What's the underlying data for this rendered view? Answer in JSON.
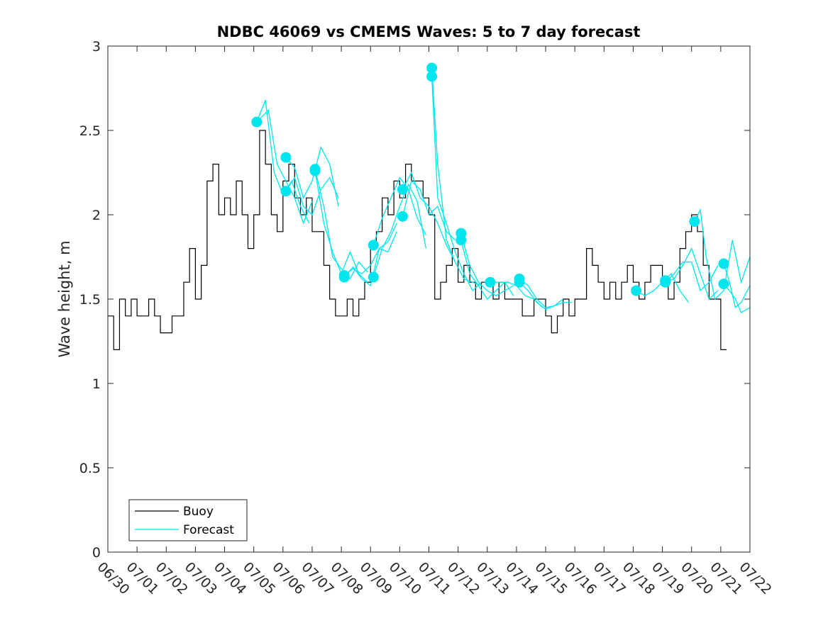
{
  "chart_data": {
    "type": "line",
    "title": "NDBC 46069 vs CMEMS Waves: 5 to 7 day forecast",
    "xlabel": "",
    "ylabel": "Wave height, m",
    "xlim": [
      "06/30",
      "07/22"
    ],
    "ylim": [
      0,
      3
    ],
    "xticks": [
      "06/30",
      "07/01",
      "07/02",
      "07/03",
      "07/04",
      "07/05",
      "07/06",
      "07/07",
      "07/08",
      "07/09",
      "07/10",
      "07/11",
      "07/12",
      "07/13",
      "07/14",
      "07/15",
      "07/16",
      "07/17",
      "07/18",
      "07/19",
      "07/20",
      "07/21",
      "07/22"
    ],
    "yticks": [
      "0",
      "0.5",
      "1",
      "1.5",
      "2",
      "2.5",
      "3"
    ],
    "grid": false,
    "legend": {
      "location": "bottom-left",
      "entries": [
        {
          "label": "Buoy",
          "color": "#000000"
        },
        {
          "label": "Forecast",
          "color": "#00e5ee"
        }
      ]
    },
    "colors": {
      "buoy": "#000000",
      "forecast": "#00e5ee"
    },
    "series": [
      {
        "name": "Buoy",
        "x_days": [
          0.0,
          0.2,
          0.4,
          0.6,
          0.8,
          1.0,
          1.2,
          1.4,
          1.6,
          1.8,
          2.0,
          2.2,
          2.4,
          2.6,
          2.8,
          3.0,
          3.2,
          3.4,
          3.6,
          3.8,
          4.0,
          4.2,
          4.4,
          4.6,
          4.8,
          5.0,
          5.2,
          5.4,
          5.6,
          5.8,
          6.0,
          6.2,
          6.4,
          6.6,
          6.8,
          7.0,
          7.2,
          7.4,
          7.6,
          7.8,
          8.0,
          8.2,
          8.4,
          8.6,
          8.8,
          9.0,
          9.2,
          9.4,
          9.6,
          9.8,
          10.0,
          10.2,
          10.4,
          10.6,
          10.8,
          11.0,
          11.2,
          11.4,
          11.6,
          11.8,
          12.0,
          12.2,
          12.4,
          12.6,
          12.8,
          13.0,
          13.2,
          13.4,
          13.6,
          13.8,
          14.0,
          14.2,
          14.4,
          14.6,
          14.8,
          15.0,
          15.2,
          15.4,
          15.6,
          15.8,
          16.0,
          16.2,
          16.4,
          16.6,
          16.8,
          17.0,
          17.2,
          17.4,
          17.6,
          17.8,
          18.0,
          18.2,
          18.4,
          18.6,
          18.8,
          19.0,
          19.2,
          19.4,
          19.6,
          19.8,
          20.0,
          20.2,
          20.4,
          20.6,
          20.8,
          21.0,
          21.2
        ],
        "values": [
          1.4,
          1.2,
          1.5,
          1.4,
          1.5,
          1.4,
          1.4,
          1.5,
          1.4,
          1.3,
          1.3,
          1.4,
          1.4,
          1.6,
          1.8,
          1.5,
          1.7,
          2.2,
          2.3,
          2.0,
          2.1,
          2.0,
          2.2,
          2.0,
          1.8,
          2.0,
          2.5,
          2.3,
          2.0,
          1.9,
          2.2,
          2.3,
          2.1,
          2.0,
          2.1,
          1.9,
          1.9,
          1.7,
          1.5,
          1.4,
          1.4,
          1.5,
          1.4,
          1.5,
          1.6,
          1.8,
          1.9,
          2.1,
          2.0,
          2.2,
          2.1,
          2.3,
          2.2,
          2.2,
          2.1,
          2.0,
          1.5,
          1.6,
          1.7,
          1.8,
          1.6,
          1.7,
          1.6,
          1.5,
          1.6,
          1.6,
          1.5,
          1.6,
          1.5,
          1.5,
          1.5,
          1.4,
          1.4,
          1.5,
          1.5,
          1.4,
          1.3,
          1.4,
          1.5,
          1.4,
          1.5,
          1.5,
          1.8,
          1.7,
          1.6,
          1.5,
          1.6,
          1.5,
          1.6,
          1.7,
          1.6,
          1.5,
          1.6,
          1.7,
          1.7,
          1.6,
          1.5,
          1.6,
          1.8,
          1.9,
          2.0,
          1.9,
          1.7,
          1.5,
          1.5,
          1.2,
          1.2
        ]
      },
      {
        "name": "Forecast",
        "segments": [
          {
            "x_days": [
              5.1,
              5.4,
              5.7,
              6.0,
              6.3,
              6.6,
              6.9
            ],
            "values": [
              2.55,
              2.68,
              2.25,
              2.12,
              2.2,
              2.05,
              1.95
            ]
          },
          {
            "x_days": [
              5.1,
              5.5,
              5.8,
              6.1,
              6.4,
              6.7,
              7.0
            ],
            "values": [
              2.55,
              2.62,
              2.3,
              2.2,
              2.1,
              1.95,
              2.08
            ]
          },
          {
            "x_days": [
              6.1,
              6.4,
              6.7,
              7.0,
              7.3,
              7.6,
              7.9
            ],
            "values": [
              2.34,
              2.28,
              2.1,
              2.2,
              2.4,
              2.3,
              2.05
            ]
          },
          {
            "x_days": [
              6.1,
              6.4,
              6.7,
              7.0,
              7.3,
              7.6,
              7.9
            ],
            "values": [
              2.14,
              2.22,
              2.05,
              2.0,
              2.15,
              2.22,
              2.1
            ]
          },
          {
            "x_days": [
              7.1,
              7.4,
              7.7,
              8.0,
              8.3,
              8.6,
              8.9
            ],
            "values": [
              2.27,
              2.05,
              1.75,
              1.68,
              1.62,
              1.72,
              1.66
            ]
          },
          {
            "x_days": [
              7.1,
              7.4,
              7.7,
              8.0,
              8.3,
              8.6,
              8.9
            ],
            "values": [
              2.26,
              1.95,
              1.78,
              1.65,
              1.78,
              1.65,
              1.6
            ]
          },
          {
            "x_days": [
              8.1,
              8.4,
              8.7,
              9.0,
              9.3,
              9.6,
              9.9
            ],
            "values": [
              1.64,
              1.68,
              1.65,
              1.7,
              1.8,
              1.84,
              1.95
            ]
          },
          {
            "x_days": [
              8.1,
              8.4,
              8.7,
              9.0,
              9.3,
              9.6,
              9.9
            ],
            "values": [
              1.63,
              1.69,
              1.62,
              1.58,
              1.8,
              1.78,
              1.9
            ]
          },
          {
            "x_days": [
              9.1,
              9.4,
              9.7,
              10.0,
              10.3,
              10.6,
              10.9
            ],
            "values": [
              1.82,
              1.98,
              2.1,
              2.22,
              2.15,
              1.98,
              1.88
            ]
          },
          {
            "x_days": [
              9.1,
              9.4,
              9.7,
              10.0,
              10.3,
              10.6,
              10.9
            ],
            "values": [
              1.63,
              1.8,
              1.9,
              2.05,
              2.18,
              2.08,
              1.8
            ]
          },
          {
            "x_days": [
              10.1,
              10.4,
              10.7,
              11.0,
              11.3,
              11.6,
              11.9
            ],
            "values": [
              1.99,
              2.2,
              2.15,
              2.0,
              2.05,
              1.9,
              1.85
            ]
          },
          {
            "x_days": [
              10.1,
              10.4,
              10.7,
              11.0,
              11.3,
              11.6,
              11.9
            ],
            "values": [
              2.15,
              2.25,
              2.1,
              2.05,
              1.95,
              1.82,
              1.72
            ]
          },
          {
            "x_days": [
              11.1,
              11.3,
              11.6,
              11.9,
              12.2,
              12.5,
              12.8
            ],
            "values": [
              2.87,
              2.3,
              1.85,
              1.72,
              1.62,
              1.6,
              1.58
            ]
          },
          {
            "x_days": [
              11.1,
              11.3,
              11.6,
              11.9,
              12.2,
              12.5,
              12.8
            ],
            "values": [
              2.82,
              2.1,
              1.95,
              1.78,
              1.65,
              1.55,
              1.6
            ]
          },
          {
            "x_days": [
              12.1,
              12.4,
              12.7,
              13.0,
              13.3,
              13.6,
              13.9
            ],
            "values": [
              1.89,
              1.7,
              1.6,
              1.55,
              1.52,
              1.55,
              1.58
            ]
          },
          {
            "x_days": [
              12.1,
              12.4,
              12.7,
              13.0,
              13.3,
              13.6,
              13.9
            ],
            "values": [
              1.85,
              1.65,
              1.58,
              1.5,
              1.55,
              1.6,
              1.52
            ]
          },
          {
            "x_days": [
              13.1,
              13.4,
              13.7,
              14.0,
              14.3,
              14.6,
              14.9
            ],
            "values": [
              1.6,
              1.6,
              1.6,
              1.58,
              1.52,
              1.5,
              1.45
            ]
          },
          {
            "x_days": [
              14.1,
              14.4,
              14.7,
              15.0,
              15.3,
              15.6,
              15.9
            ],
            "values": [
              1.62,
              1.58,
              1.5,
              1.45,
              1.46,
              1.48,
              1.48
            ]
          },
          {
            "x_days": [
              14.1,
              14.4,
              14.7,
              15.0,
              15.3,
              15.6
            ],
            "values": [
              1.6,
              1.55,
              1.48,
              1.44,
              1.46,
              1.5
            ]
          },
          {
            "x_days": [
              18.1,
              18.4,
              18.7,
              19.0,
              19.3,
              19.6,
              19.9
            ],
            "values": [
              1.55,
              1.52,
              1.55,
              1.6,
              1.65,
              1.55,
              1.48
            ]
          },
          {
            "x_days": [
              19.1,
              19.4,
              19.7,
              20.0,
              20.3,
              20.6,
              20.9
            ],
            "values": [
              1.6,
              1.62,
              1.7,
              1.8,
              1.65,
              1.5,
              1.55
            ]
          },
          {
            "x_days": [
              19.1,
              19.4,
              19.7,
              20.0,
              20.3,
              20.6,
              20.9
            ],
            "values": [
              1.6,
              1.65,
              1.72,
              1.72,
              1.55,
              1.6,
              1.7
            ]
          },
          {
            "x_days": [
              20.1,
              20.3,
              20.5,
              20.8,
              21.1,
              21.4,
              21.7,
              22.0
            ],
            "values": [
              1.96,
              2.03,
              1.75,
              1.5,
              1.55,
              1.85,
              1.6,
              1.75
            ]
          },
          {
            "x_days": [
              21.1,
              21.3,
              21.5,
              21.7,
              22.0
            ],
            "values": [
              1.71,
              1.6,
              1.45,
              1.48,
              1.58
            ]
          },
          {
            "x_days": [
              21.1,
              21.3,
              21.5,
              21.7,
              22.0
            ],
            "values": [
              1.59,
              1.55,
              1.5,
              1.42,
              1.45
            ]
          }
        ],
        "markers": {
          "x_days": [
            5.1,
            6.1,
            6.1,
            7.1,
            7.1,
            8.1,
            8.1,
            9.1,
            9.1,
            10.1,
            10.1,
            11.1,
            11.1,
            12.1,
            12.1,
            13.1,
            14.1,
            14.1,
            18.1,
            19.1,
            19.1,
            20.1,
            21.1,
            21.1
          ],
          "values": [
            2.55,
            2.34,
            2.14,
            2.27,
            2.26,
            1.64,
            1.63,
            1.82,
            1.63,
            1.99,
            2.15,
            2.87,
            2.82,
            1.89,
            1.85,
            1.6,
            1.62,
            1.6,
            1.55,
            1.61,
            1.6,
            1.96,
            1.71,
            1.59
          ]
        }
      }
    ]
  }
}
